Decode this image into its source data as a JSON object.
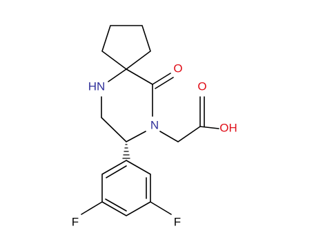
{
  "atoms": {
    "ketone_oxygen": "O",
    "amine": "HN",
    "amide_nitrogen": "N",
    "acid_oxygen": "O",
    "hydroxyl": "OH",
    "fluorine_left": "F",
    "fluorine_right": "F"
  }
}
